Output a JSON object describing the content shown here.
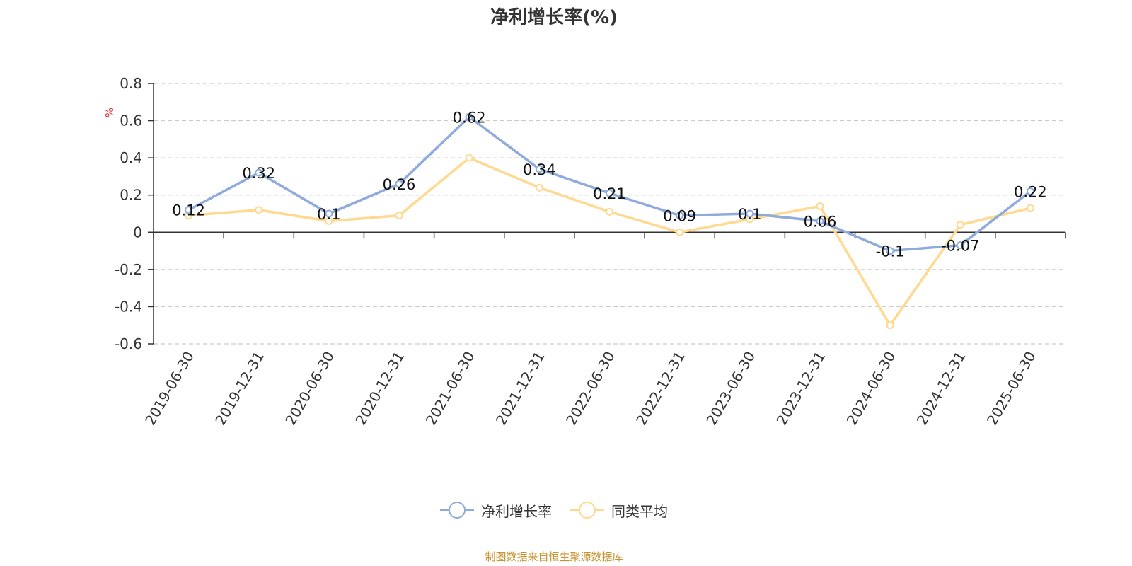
{
  "chart_data": {
    "type": "line",
    "title": "净利增长率(%)",
    "ylabel": "%",
    "xlabel": "",
    "ylim": [
      -0.6,
      0.8
    ],
    "yticks": [
      0.8,
      0.6,
      0.4,
      0.2,
      0,
      -0.2,
      -0.4,
      -0.6
    ],
    "ytick_labels": [
      "0.8",
      "0.6",
      "0.4",
      "0.2",
      "0",
      "-0.2",
      "-0.4",
      "-0.6"
    ],
    "grid": true,
    "legend_position": "bottom-center",
    "categories": [
      "2019-06-30",
      "2019-12-31",
      "2020-06-30",
      "2020-12-31",
      "2021-06-30",
      "2021-12-31",
      "2022-06-30",
      "2022-12-31",
      "2023-06-30",
      "2023-12-31",
      "2024-06-30",
      "2024-12-31",
      "2025-06-30"
    ],
    "series": [
      {
        "name": "净利增长率",
        "color": "#8faadc",
        "values": [
          0.12,
          0.32,
          0.1,
          0.26,
          0.62,
          0.34,
          0.21,
          0.09,
          0.1,
          0.06,
          -0.1,
          -0.07,
          0.22
        ],
        "data_labels": [
          "0.12",
          "0.32",
          "0.1",
          "0.26",
          "0.62",
          "0.34",
          "0.21",
          "0.09",
          "0.1",
          "0.06",
          "-0.1",
          "-0.07",
          "0.22"
        ]
      },
      {
        "name": "同类平均",
        "color": "#ffd990",
        "values": [
          0.09,
          0.12,
          0.06,
          0.09,
          0.4,
          0.24,
          0.11,
          0.0,
          0.07,
          0.14,
          -0.5,
          0.04,
          0.13
        ]
      }
    ]
  },
  "source_note": "制图数据来自恒生聚源数据库",
  "colors": {
    "axis": "#333333",
    "grid": "#cccccc",
    "ylabel_color": "#e03030",
    "source_color": "#c8922f"
  }
}
